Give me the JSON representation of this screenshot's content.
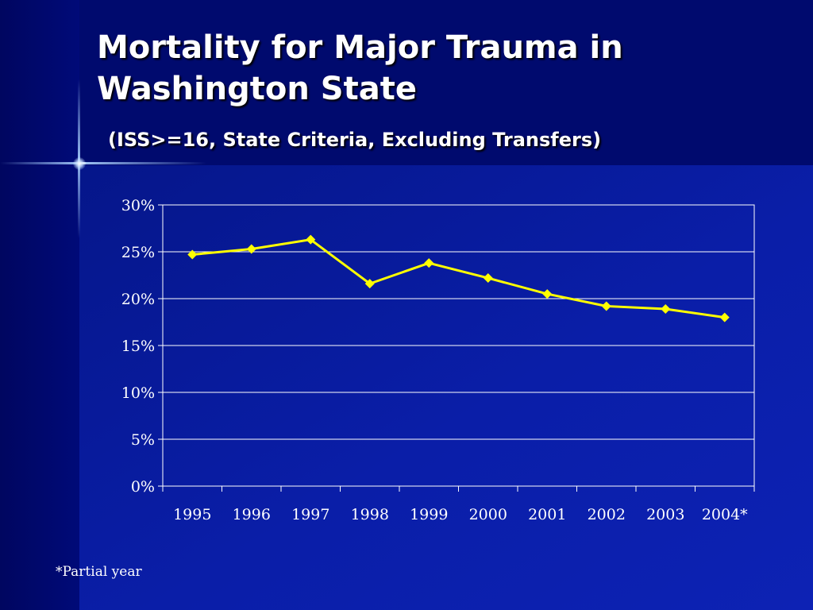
{
  "slide": {
    "title_line1": "Mortality for Major Trauma in",
    "title_line2": "Washington State",
    "subtitle": "(ISS>=16, State Criteria, Excluding Transfers)",
    "footnote": "*Partial year"
  },
  "colors": {
    "background": "#000a7a",
    "line": "#ffff00",
    "grid": "#ffffff",
    "text": "#ffffff"
  },
  "chart_data": {
    "type": "line",
    "categories": [
      "1995",
      "1996",
      "1997",
      "1998",
      "1999",
      "2000",
      "2001",
      "2002",
      "2003",
      "2004*"
    ],
    "series": [
      {
        "values": [
          24.7,
          25.3,
          26.3,
          21.6,
          23.8,
          22.2,
          20.5,
          19.2,
          18.9,
          18.0
        ]
      }
    ],
    "ylim": [
      0,
      30
    ],
    "yticks": [
      0,
      5,
      10,
      15,
      20,
      25,
      30
    ],
    "ytick_labels": [
      "0%",
      "5%",
      "10%",
      "15%",
      "20%",
      "25%",
      "30%"
    ],
    "grid": true,
    "legend": "none",
    "marker": "diamond"
  }
}
